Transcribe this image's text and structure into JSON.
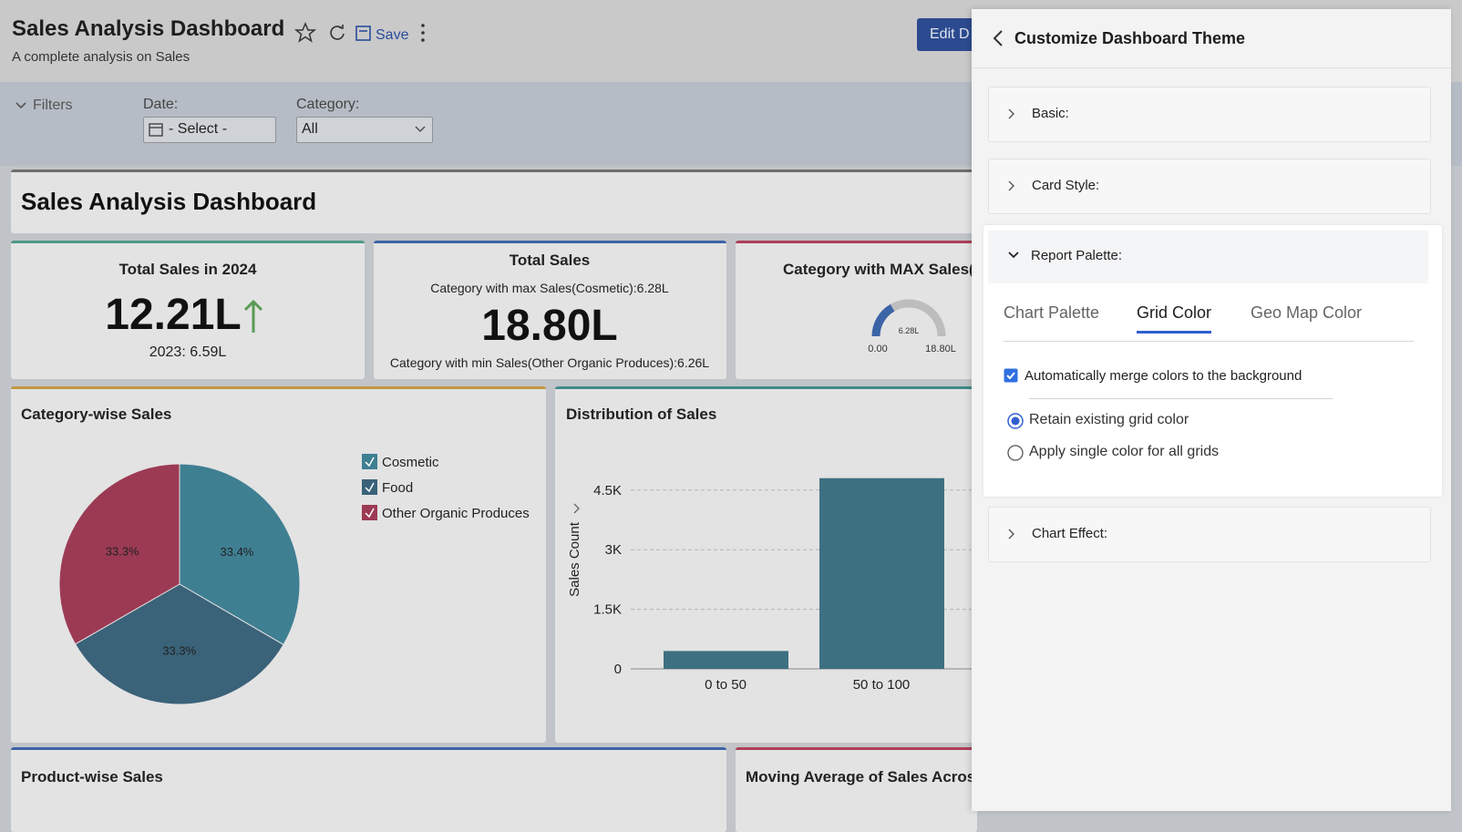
{
  "header": {
    "title": "Sales Analysis Dashboard",
    "subtitle": "A complete analysis on Sales",
    "save": "Save",
    "edit": "Edit D"
  },
  "filters": {
    "label": "Filters",
    "date_label": "Date:",
    "date_value": "- Select -",
    "category_label": "Category:",
    "category_value": "All"
  },
  "banner_title": "Sales Analysis Dashboard",
  "kpis": [
    {
      "title": "Total Sales in 2024",
      "value": "12.21L",
      "sub": "2023: 6.59L"
    },
    {
      "title": "Total Sales",
      "top": "Category with max Sales(Cosmetic):6.28L",
      "value": "18.80L",
      "bottom": "Category with min Sales(Other Organic Produces):6.26L"
    },
    {
      "title": "Category with MAX Sales(",
      "gauge": {
        "value": 6.28,
        "value_label": "6.28L",
        "min": 0,
        "min_label": "0.00",
        "max": 18.8,
        "max_label": "18.80L"
      }
    }
  ],
  "pie_chart": {
    "type": "pie",
    "title": "Category-wise Sales",
    "categories": [
      "Cosmetic",
      "Food",
      "Other Organic Produces"
    ],
    "values": [
      33.4,
      33.3,
      33.3
    ],
    "value_labels": [
      "33.4%",
      "33.3%",
      "33.3%"
    ],
    "colors": [
      "#3f7f92",
      "#3a6279",
      "#9c3a54"
    ]
  },
  "bar_chart": {
    "type": "bar",
    "title": "Distribution of Sales",
    "y_label": "Sales Count",
    "categories": [
      "0 to 50",
      "50 to 100"
    ],
    "values": [
      450,
      4800
    ],
    "color": "#3d7182",
    "ylim": [
      0,
      5000
    ],
    "yticks": [
      0,
      {
        "value": 1500,
        "label": "1.5K"
      },
      {
        "value": 3000,
        "label": "3K"
      },
      {
        "value": 4500,
        "label": "4.5K"
      }
    ],
    "grid": true
  },
  "bottom_cards": [
    "Product-wise Sales",
    "Moving Average of Sales Across"
  ],
  "panel": {
    "title": "Customize Dashboard Theme",
    "sections": [
      "Basic:",
      "Card Style:",
      "Report Palette:",
      "Chart Effect:"
    ],
    "tabs": [
      "Chart Palette",
      "Grid Color",
      "Geo Map Color"
    ],
    "active_tab": 1,
    "checkbox": "Automatically merge colors to the background",
    "radios": [
      "Retain existing grid color",
      "Apply single color for all grids"
    ]
  }
}
